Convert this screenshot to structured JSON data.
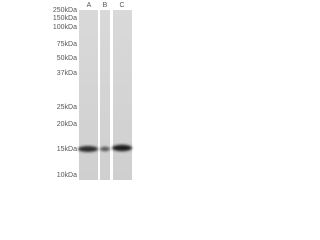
{
  "markers": [
    "250kDa",
    "150kDa",
    "100kDa",
    "75kDa",
    "50kDa",
    "37kDa",
    "25kDa",
    "20kDa",
    "15kDa",
    "10kDa"
  ],
  "lanes": [
    "A",
    "B",
    "C"
  ]
}
